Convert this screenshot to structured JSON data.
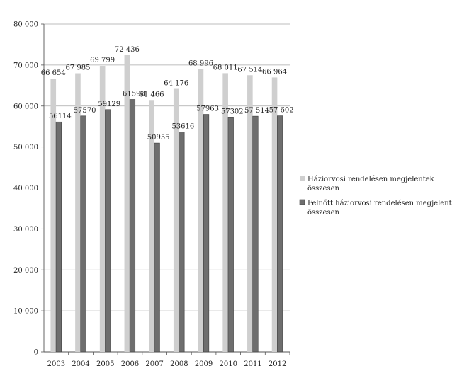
{
  "chart_data": {
    "type": "bar",
    "title": "",
    "xlabel": "",
    "ylabel": "",
    "categories": [
      "2003",
      "2004",
      "2005",
      "2006",
      "2007",
      "2008",
      "2009",
      "2010",
      "2011",
      "2012"
    ],
    "ylim": [
      0,
      80000
    ],
    "y_ticks": [
      0,
      10000,
      20000,
      30000,
      40000,
      50000,
      60000,
      70000,
      80000
    ],
    "y_tick_labels": [
      "0",
      "10 000",
      "20 000",
      "30 000",
      "40 000",
      "50 000",
      "60 000",
      "70 000",
      "80 000"
    ],
    "grid": "horizontal",
    "legend_position": "right",
    "series": [
      {
        "name": "Háziorvosi rendelésen megjelentek összesen",
        "color": "#cfcfcf",
        "values": [
          66654,
          67985,
          69799,
          72436,
          61466,
          64176,
          68996,
          68011,
          67514,
          66964
        ],
        "labels": [
          "66 654",
          "67 985",
          "69 799",
          "72 436",
          "61 466",
          "64 176",
          "68 996",
          "68 011",
          "67 514",
          "66 964"
        ]
      },
      {
        "name": "Felnőtt háziorvosi rendelésen megjelentek összesen",
        "color": "#6e6e6e",
        "values": [
          56114,
          57570,
          59129,
          61598,
          50955,
          53616,
          57963,
          57302,
          57514,
          57602
        ],
        "labels": [
          "56114",
          "57570",
          "59129",
          "61598",
          "50955",
          "53616",
          "57963",
          "57302",
          "57 514",
          "57 602"
        ]
      }
    ],
    "legend_lines": [
      [
        "Háziorvosi rendelésen megjelentek",
        "összesen"
      ],
      [
        "Felnőtt háziorvosi rendelésen megjelentek",
        "összesen"
      ]
    ]
  }
}
